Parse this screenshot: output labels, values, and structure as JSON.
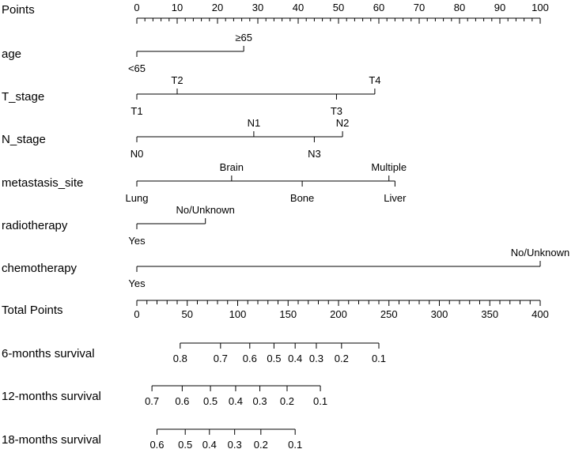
{
  "chart_data": {
    "type": "nomogram",
    "points_axis": {
      "label": "Points",
      "min": 0,
      "max": 100,
      "ticks": [
        "0",
        "10",
        "20",
        "30",
        "40",
        "50",
        "60",
        "70",
        "80",
        "90",
        "100"
      ]
    },
    "variables": [
      {
        "name": "age",
        "levels": [
          {
            "label": "<65",
            "points": 0,
            "side": "below"
          },
          {
            "label": "≥65",
            "points": 26.5,
            "side": "above"
          }
        ]
      },
      {
        "name": "T_stage",
        "levels": [
          {
            "label": "T1",
            "points": 0,
            "side": "below"
          },
          {
            "label": "T2",
            "points": 10,
            "side": "above"
          },
          {
            "label": "T3",
            "points": 49.5,
            "side": "below"
          },
          {
            "label": "T4",
            "points": 59,
            "side": "above"
          }
        ]
      },
      {
        "name": "N_stage",
        "levels": [
          {
            "label": "N0",
            "points": 0,
            "side": "below"
          },
          {
            "label": "N1",
            "points": 29,
            "side": "above"
          },
          {
            "label": "N3",
            "points": 44,
            "side": "below"
          },
          {
            "label": "N2",
            "points": 51,
            "side": "above"
          }
        ]
      },
      {
        "name": "metastasis_site",
        "levels": [
          {
            "label": "Lung",
            "points": 0,
            "side": "below"
          },
          {
            "label": "Brain",
            "points": 23.5,
            "side": "above"
          },
          {
            "label": "Bone",
            "points": 41,
            "side": "below"
          },
          {
            "label": "Multiple",
            "points": 62.5,
            "side": "above"
          },
          {
            "label": "Liver",
            "points": 64,
            "side": "below"
          }
        ]
      },
      {
        "name": "radiotherapy",
        "levels": [
          {
            "label": "Yes",
            "points": 0,
            "side": "below"
          },
          {
            "label": "No/Unknown",
            "points": 17,
            "side": "above"
          }
        ]
      },
      {
        "name": "chemotherapy",
        "levels": [
          {
            "label": "Yes",
            "points": 0,
            "side": "below"
          },
          {
            "label": "No/Unknown",
            "points": 100,
            "side": "above"
          }
        ]
      }
    ],
    "total_points_axis": {
      "label": "Total Points",
      "min": 0,
      "max": 400,
      "labeled_ticks": [
        "0",
        "50",
        "100",
        "150",
        "200",
        "250",
        "300",
        "350",
        "400"
      ],
      "minor_step": 10
    },
    "survival_axes": [
      {
        "label": "6-months survival",
        "ticks": [
          {
            "label": "0.8",
            "total_points": 43
          },
          {
            "label": "0.7",
            "total_points": 83
          },
          {
            "label": "0.6",
            "total_points": 112
          },
          {
            "label": "0.5",
            "total_points": 136
          },
          {
            "label": "0.4",
            "total_points": 157
          },
          {
            "label": "0.3",
            "total_points": 178
          },
          {
            "label": "0.2",
            "total_points": 203
          },
          {
            "label": "0.1",
            "total_points": 240
          }
        ]
      },
      {
        "label": "12-months survival",
        "ticks": [
          {
            "label": "0.7",
            "total_points": 15
          },
          {
            "label": "0.6",
            "total_points": 45
          },
          {
            "label": "0.5",
            "total_points": 73
          },
          {
            "label": "0.4",
            "total_points": 98
          },
          {
            "label": "0.3",
            "total_points": 122
          },
          {
            "label": "0.2",
            "total_points": 149
          },
          {
            "label": "0.1",
            "total_points": 182
          }
        ]
      },
      {
        "label": "18-months survival",
        "ticks": [
          {
            "label": "0.6",
            "total_points": 20
          },
          {
            "label": "0.5",
            "total_points": 48
          },
          {
            "label": "0.4",
            "total_points": 72
          },
          {
            "label": "0.3",
            "total_points": 97
          },
          {
            "label": "0.2",
            "total_points": 123
          },
          {
            "label": "0.1",
            "total_points": 157
          }
        ]
      }
    ]
  }
}
